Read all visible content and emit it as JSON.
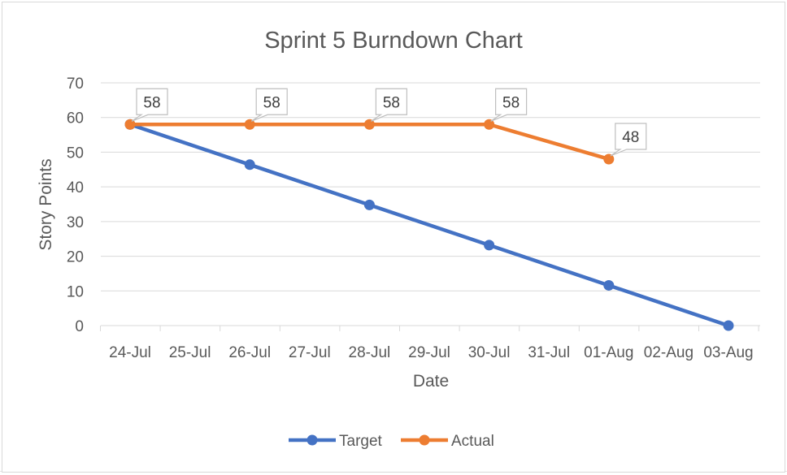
{
  "chart_data": {
    "type": "line",
    "title": "Sprint 5 Burndown Chart",
    "xlabel": "Date",
    "ylabel": "Story Points",
    "categories": [
      "24-Jul",
      "25-Jul",
      "26-Jul",
      "27-Jul",
      "28-Jul",
      "29-Jul",
      "30-Jul",
      "31-Jul",
      "01-Aug",
      "02-Aug",
      "03-Aug"
    ],
    "x": [
      "24-Jul",
      "26-Jul",
      "28-Jul",
      "30-Jul",
      "01-Aug",
      "03-Aug"
    ],
    "ylim": [
      0,
      70
    ],
    "yticks": [
      0,
      10,
      20,
      30,
      40,
      50,
      60,
      70
    ],
    "grid": true,
    "legend": "bottom",
    "series": [
      {
        "name": "Target",
        "color": "#4472c4",
        "x": [
          "24-Jul",
          "26-Jul",
          "28-Jul",
          "30-Jul",
          "01-Aug",
          "03-Aug"
        ],
        "values": [
          58,
          46.4,
          34.8,
          23.2,
          11.6,
          0
        ]
      },
      {
        "name": "Actual",
        "color": "#ed7d31",
        "x": [
          "24-Jul",
          "26-Jul",
          "28-Jul",
          "30-Jul",
          "01-Aug"
        ],
        "values": [
          58,
          58,
          58,
          58,
          48
        ],
        "data_labels": [
          "58",
          "58",
          "58",
          "58",
          "48"
        ]
      }
    ]
  }
}
